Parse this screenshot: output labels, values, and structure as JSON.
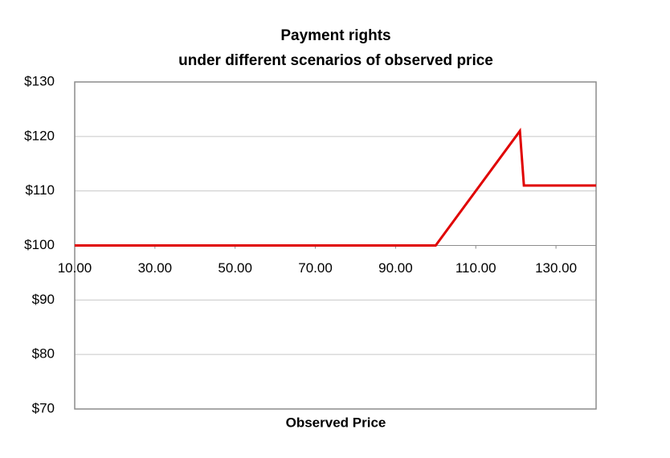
{
  "chart_data": {
    "type": "line",
    "title": "Payment rights",
    "subtitle": "under different scenarios of observed price",
    "x_label": "Observed Price",
    "x": [
      10,
      100,
      121,
      122,
      140
    ],
    "series": [
      {
        "color": "#e00000",
        "values": [
          100,
          100,
          121,
          111,
          111
        ]
      }
    ],
    "xlim": [
      10,
      140
    ],
    "xticks": [
      {
        "value": 10,
        "label": "10.00"
      },
      {
        "value": 30,
        "label": "30.00"
      },
      {
        "value": 50,
        "label": "50.00"
      },
      {
        "value": 70,
        "label": "70.00"
      },
      {
        "value": 90,
        "label": "90.00"
      },
      {
        "value": 110,
        "label": "110.00"
      },
      {
        "value": 130,
        "label": "130.00"
      }
    ],
    "ylim": [
      70,
      130
    ],
    "yticks": [
      {
        "value": 70,
        "label": "$70"
      },
      {
        "value": 80,
        "label": "$80"
      },
      {
        "value": 90,
        "label": "$90"
      },
      {
        "value": 100,
        "label": "$100"
      },
      {
        "value": 110,
        "label": "$110"
      },
      {
        "value": 120,
        "label": "$120"
      },
      {
        "value": 130,
        "label": "$130"
      }
    ],
    "x_axis_crosses_at": 100,
    "grid": true
  }
}
